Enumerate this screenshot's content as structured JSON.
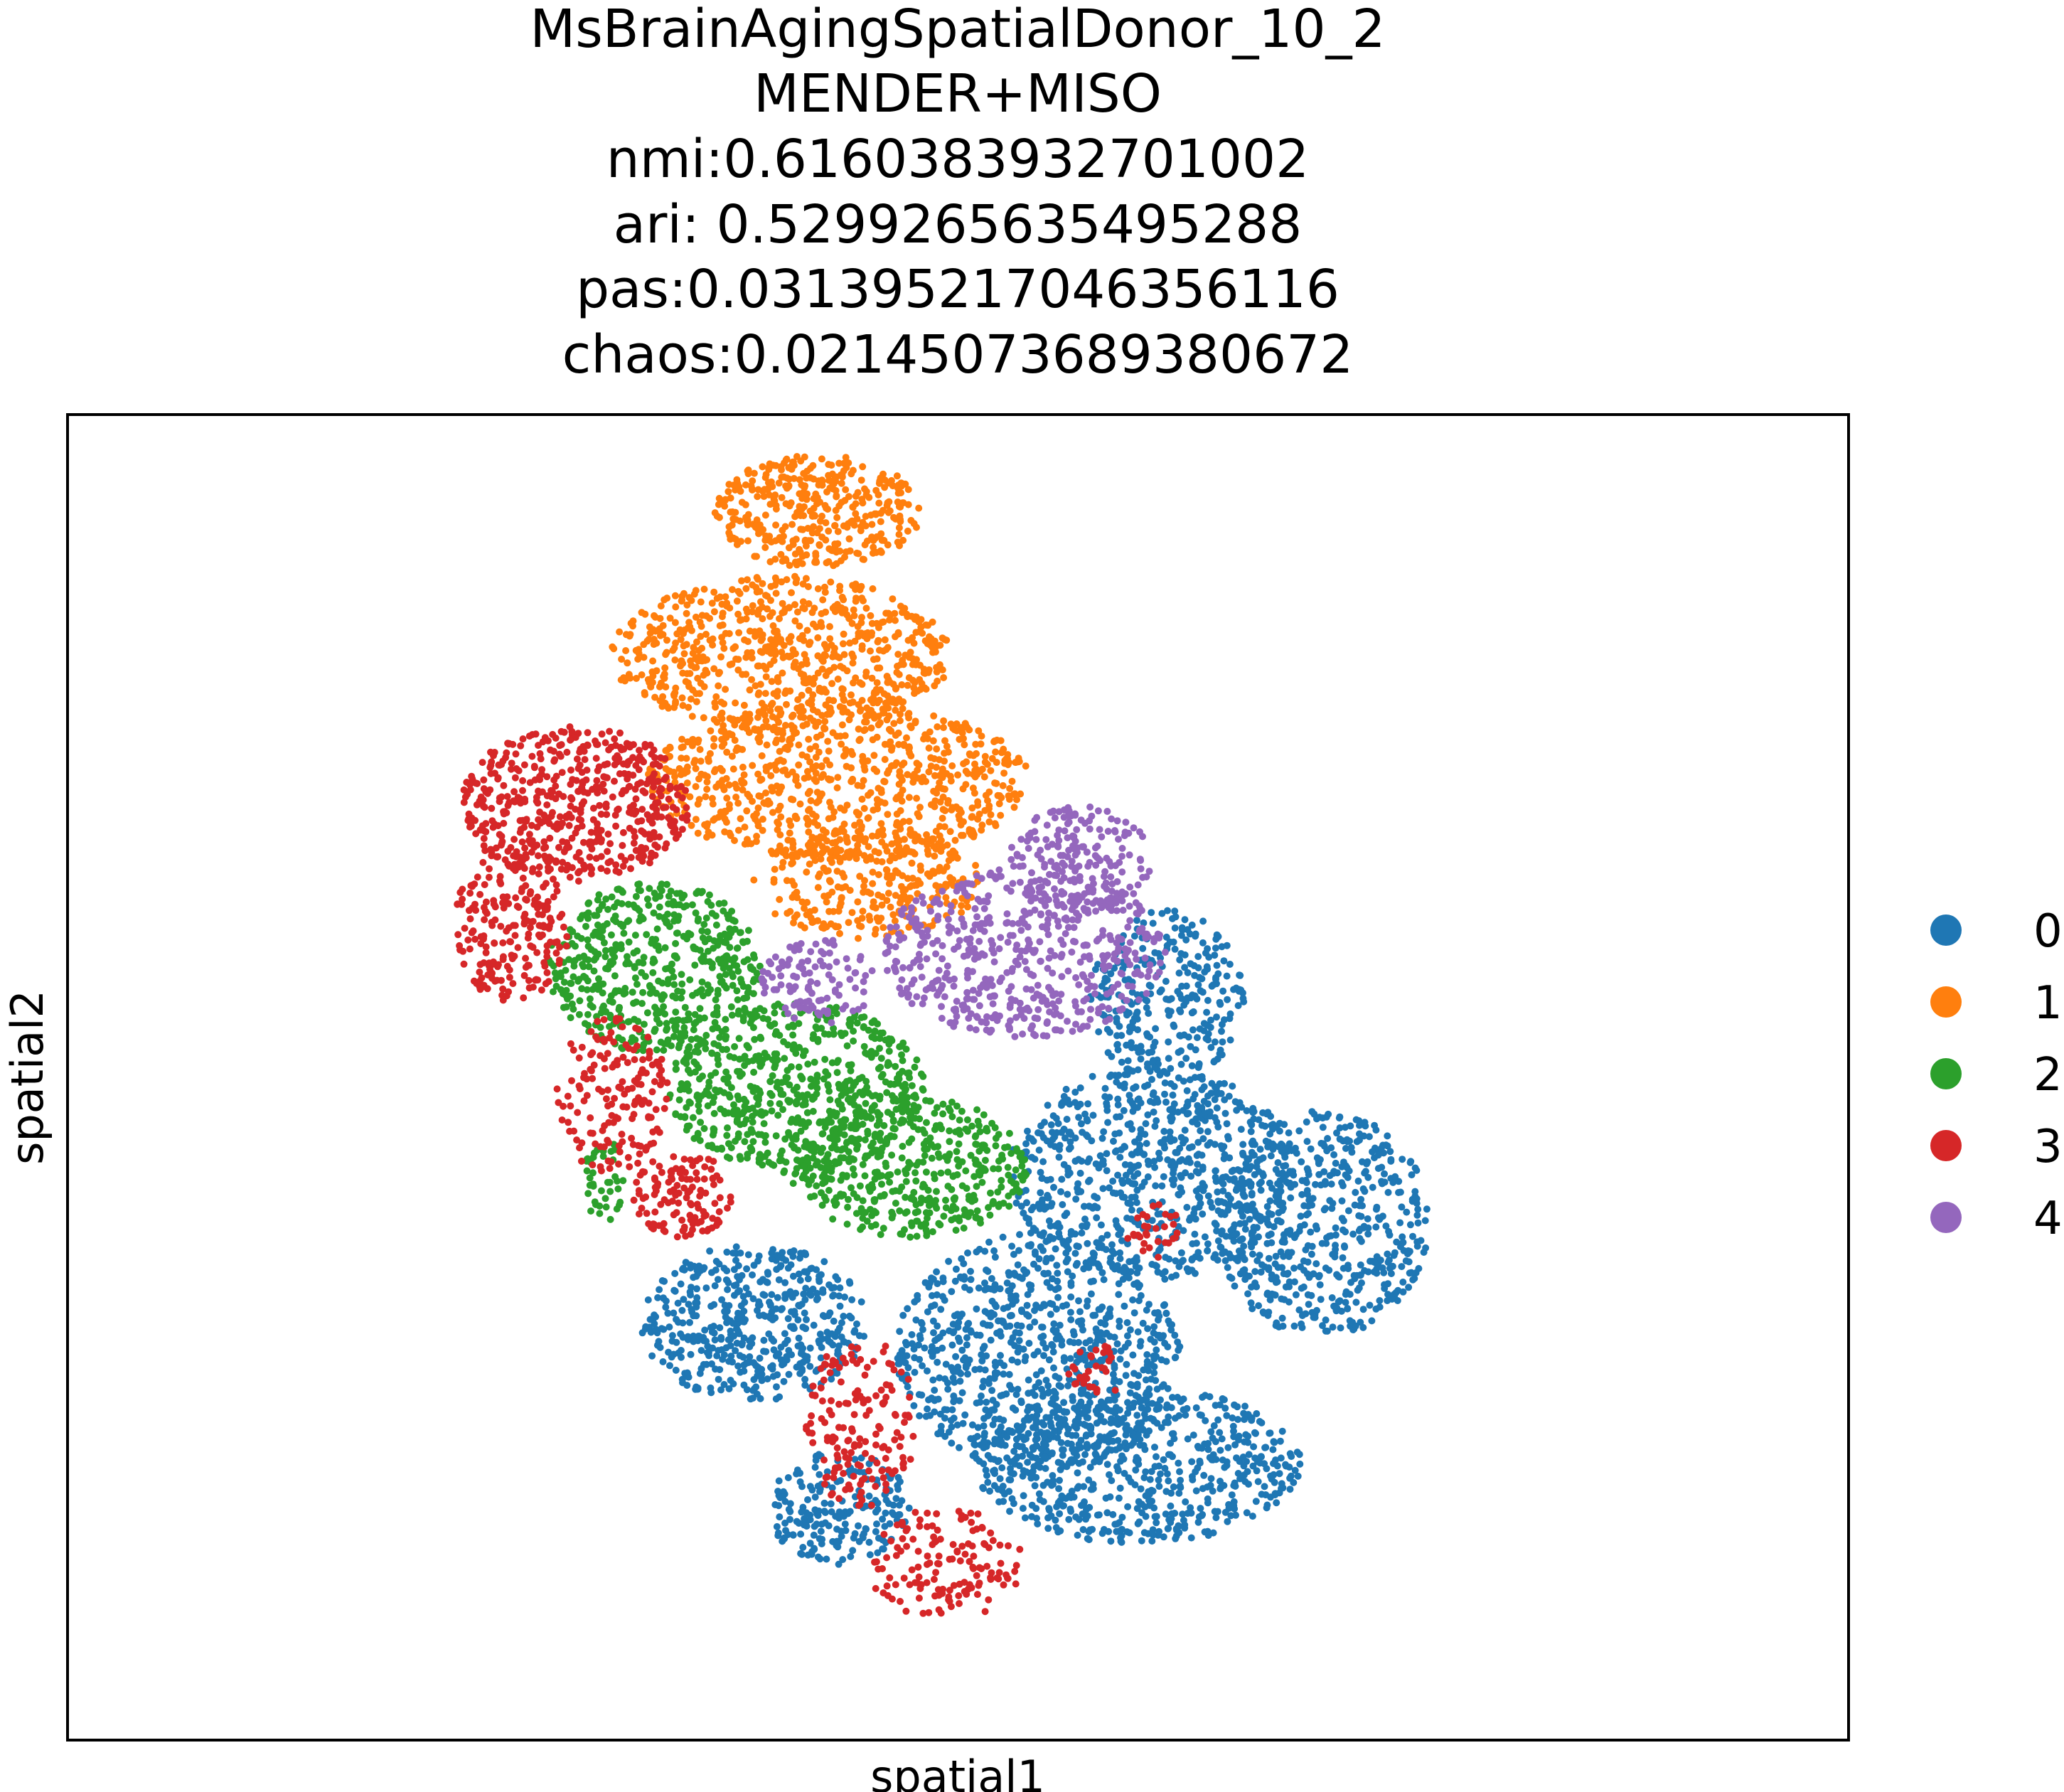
{
  "chart_data": {
    "type": "scatter",
    "title_lines": [
      "MsBrainAgingSpatialDonor_10_2",
      "MENDER+MISO",
      "nmi:0.6160383932701002",
      "ari: 0.5299265635495288",
      "pas:0.03139521704635611​6",
      "chaos:0.02145073689380672"
    ],
    "xlabel": "spatial1",
    "ylabel": "spatial2",
    "x_ticks": [],
    "y_ticks": [],
    "grid": false,
    "legend_position": "right",
    "series": [
      {
        "name": "0",
        "color": "#1f77b4"
      },
      {
        "name": "1",
        "color": "#ff7f0e"
      },
      {
        "name": "2",
        "color": "#2ca02c"
      },
      {
        "name": "3",
        "color": "#d62728"
      },
      {
        "name": "4",
        "color": "#9467bd"
      }
    ]
  }
}
